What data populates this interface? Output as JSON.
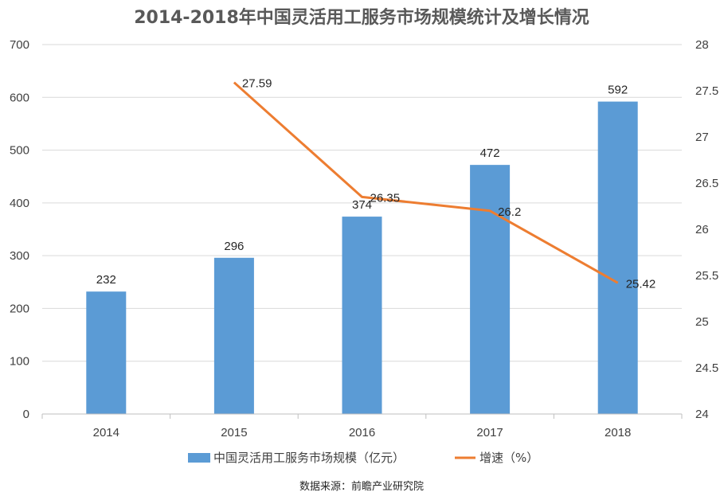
{
  "chart_data": {
    "type": "bar",
    "title": "2014-2018年中国灵活用工服务市场规模统计及增长情况",
    "categories": [
      "2014",
      "2015",
      "2016",
      "2017",
      "2018"
    ],
    "series": [
      {
        "name": "中国灵活用工服务市场规模（亿元）",
        "type": "bar",
        "axis": "left",
        "color": "#5B9BD5",
        "values": [
          232,
          296,
          374,
          472,
          592
        ],
        "labels": [
          "232",
          "296",
          "374",
          "472",
          "592"
        ]
      },
      {
        "name": "增速（%）",
        "type": "line",
        "axis": "right",
        "color": "#ED7D31",
        "values": [
          null,
          27.59,
          26.35,
          26.2,
          25.42
        ],
        "labels": [
          "",
          "27.59",
          "26.35",
          "26.2",
          "25.42"
        ]
      }
    ],
    "ylim_left": [
      0,
      700
    ],
    "yticks_left": [
      "0",
      "100",
      "200",
      "300",
      "400",
      "500",
      "600",
      "700"
    ],
    "ylim_right": [
      24,
      28
    ],
    "yticks_right": [
      "24",
      "24.5",
      "25",
      "25.5",
      "26",
      "26.5",
      "27",
      "27.5",
      "28"
    ],
    "grid": true,
    "legend_position": "bottom"
  },
  "source_text": "数据来源：前瞻产业研究院"
}
